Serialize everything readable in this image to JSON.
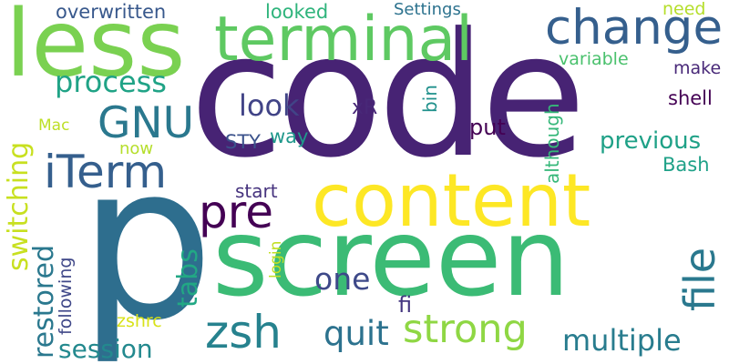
{
  "words": [
    {
      "text": "code",
      "color": "#472374"
    },
    {
      "text": "p",
      "color": "#2e6e8e"
    },
    {
      "text": "screen",
      "color": "#3bbb75"
    },
    {
      "text": "content",
      "color": "#fde725"
    },
    {
      "text": "less",
      "color": "#7ad151"
    },
    {
      "text": "terminal",
      "color": "#5ec962"
    },
    {
      "text": "change",
      "color": "#355f8d"
    },
    {
      "text": "iTerm",
      "color": "#355f8d"
    },
    {
      "text": "GNU",
      "color": "#2a788e"
    },
    {
      "text": "pre",
      "color": "#440154"
    },
    {
      "text": "file",
      "color": "#2a788e"
    },
    {
      "text": "zsh",
      "color": "#26828e"
    },
    {
      "text": "strong",
      "color": "#8fd744"
    },
    {
      "text": "quit",
      "color": "#2c728e"
    },
    {
      "text": "multiple",
      "color": "#287c8e"
    },
    {
      "text": "session",
      "color": "#23898e"
    },
    {
      "text": "switching",
      "color": "#c8e020"
    },
    {
      "text": "restored",
      "color": "#2a788e"
    },
    {
      "text": "tabs",
      "color": "#22a884"
    },
    {
      "text": "one",
      "color": "#3e4989"
    },
    {
      "text": "process",
      "color": "#20a386"
    },
    {
      "text": "look",
      "color": "#414487"
    },
    {
      "text": "previous",
      "color": "#1fa187"
    },
    {
      "text": "overwritten",
      "color": "#38588c"
    },
    {
      "text": "looked",
      "color": "#2fb47c"
    },
    {
      "text": "Settings",
      "color": "#2c728e"
    },
    {
      "text": "need",
      "color": "#b5de2b"
    },
    {
      "text": "variable",
      "color": "#4ac16d"
    },
    {
      "text": "make",
      "color": "#482878"
    },
    {
      "text": "shell",
      "color": "#440154"
    },
    {
      "text": "although",
      "color": "#35b779"
    },
    {
      "text": "bin",
      "color": "#21918c"
    },
    {
      "text": "xR",
      "color": "#482878"
    },
    {
      "text": "put",
      "color": "#440154"
    },
    {
      "text": "STY",
      "color": "#3b528b"
    },
    {
      "text": "way",
      "color": "#1f988b"
    },
    {
      "text": "Bash",
      "color": "#1fa188"
    },
    {
      "text": "start",
      "color": "#46337e"
    },
    {
      "text": "now",
      "color": "#b5de2b"
    },
    {
      "text": "Mac",
      "color": "#bddf26"
    },
    {
      "text": "login",
      "color": "#c2df23"
    },
    {
      "text": "fi",
      "color": "#453781"
    },
    {
      "text": "following",
      "color": "#3f4788"
    },
    {
      "text": "zshrc",
      "color": "#d8e219"
    }
  ]
}
